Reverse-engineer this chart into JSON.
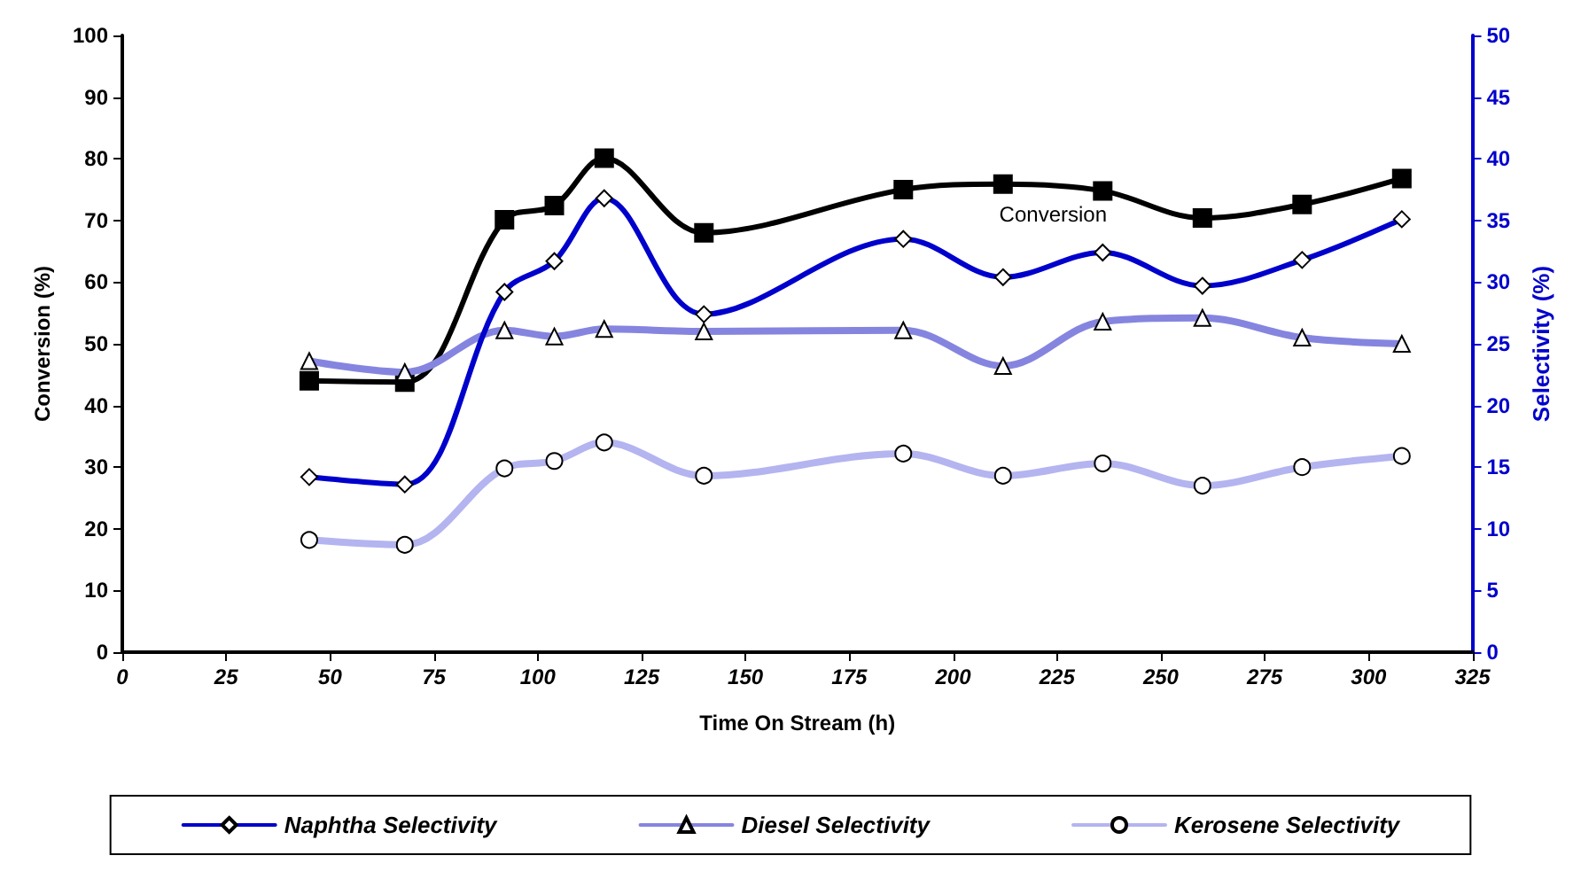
{
  "chart_data": {
    "type": "line",
    "xlabel": "Time On Stream (h)",
    "ylabel": "Conversion (%)",
    "y2label": "Selectivity (%)",
    "x": [
      45,
      68,
      92,
      104,
      116,
      140,
      188,
      212,
      236,
      260,
      284,
      308
    ],
    "series": [
      {
        "name": "Conversion",
        "color": "#000000",
        "marker": "square",
        "values": [
          44.0,
          43.8,
          70.1,
          72.4,
          80.1,
          68.0,
          75.0,
          75.9,
          74.8,
          70.4,
          72.6,
          76.8
        ]
      },
      {
        "name": "Naphtha Selectivity",
        "color": "#0000cc",
        "marker": "diamond",
        "axis": "y2",
        "values": [
          14.2,
          13.6,
          29.2,
          31.7,
          36.8,
          27.4,
          33.5,
          30.4,
          32.4,
          29.7,
          31.8,
          35.1
        ]
      },
      {
        "name": "Diesel Selectivity",
        "color": "#8585e0",
        "marker": "triangle",
        "axis": "y2",
        "values": [
          23.6,
          22.7,
          26.1,
          25.6,
          26.2,
          26.0,
          26.1,
          23.2,
          26.8,
          27.1,
          25.5,
          25.0
        ]
      },
      {
        "name": "Kerosene Selectivity",
        "color": "#b4b4f0",
        "marker": "circle",
        "axis": "y2",
        "values": [
          9.1,
          8.7,
          14.9,
          15.5,
          17.0,
          14.3,
          16.1,
          14.3,
          15.3,
          13.5,
          15.0,
          15.9
        ]
      }
    ],
    "xlim": [
      0,
      325
    ],
    "xticks": [
      0,
      25,
      50,
      75,
      100,
      125,
      150,
      175,
      200,
      225,
      250,
      275,
      300,
      325
    ],
    "ylim": [
      0,
      100
    ],
    "yticks": [
      0,
      10,
      20,
      30,
      40,
      50,
      60,
      70,
      80,
      90,
      100
    ],
    "y2lim": [
      0,
      50
    ],
    "y2ticks": [
      0,
      5,
      10,
      15,
      20,
      25,
      30,
      35,
      40,
      45,
      50
    ],
    "grid": false,
    "legend": "bottom"
  }
}
